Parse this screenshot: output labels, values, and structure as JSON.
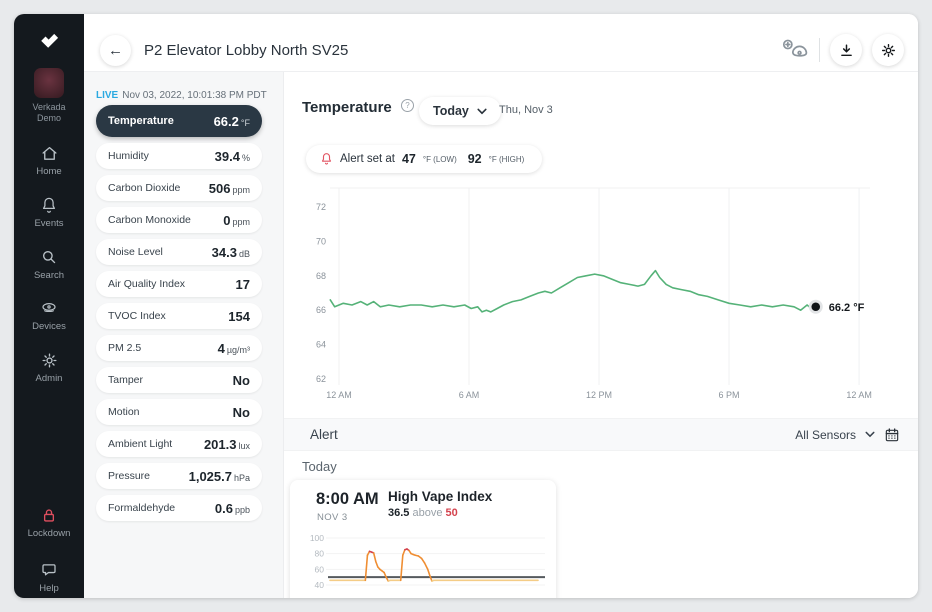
{
  "window_title": "P2 Elevator Lobby North SV25",
  "sidebar": {
    "user": {
      "line1": "Verkada",
      "line2": "Demo"
    },
    "items": [
      {
        "label": "Home",
        "icon": "home"
      },
      {
        "label": "Events",
        "icon": "bell"
      },
      {
        "label": "Search",
        "icon": "search"
      },
      {
        "label": "Devices",
        "icon": "devices"
      },
      {
        "label": "Admin",
        "icon": "gear"
      }
    ],
    "bottom_items": [
      {
        "label": "Lockdown",
        "icon": "lock",
        "red": true
      },
      {
        "label": "Help",
        "icon": "chat",
        "red": false
      }
    ]
  },
  "live_bar": {
    "live": "LIVE",
    "timestamp": "Nov 03, 2022, 10:01:38 PM PDT"
  },
  "sensor_panel": {
    "rows": [
      {
        "label": "Temperature",
        "value": "66.2",
        "unit": "°F",
        "selected": true
      },
      {
        "label": "Humidity",
        "value": "39.4",
        "unit": "%"
      },
      {
        "label": "Carbon Dioxide",
        "value": "506",
        "unit": "ppm"
      },
      {
        "label": "Carbon Monoxide",
        "value": "0",
        "unit": "ppm"
      },
      {
        "label": "Noise Level",
        "value": "34.3",
        "unit": "dB"
      },
      {
        "label": "Air Quality Index",
        "value": "17",
        "unit": ""
      },
      {
        "label": "TVOC Index",
        "value": "154",
        "unit": ""
      },
      {
        "label": "PM 2.5",
        "value": "4",
        "unit": "µg/m³"
      },
      {
        "label": "Tamper",
        "value": "No",
        "unit": ""
      },
      {
        "label": "Motion",
        "value": "No",
        "unit": ""
      },
      {
        "label": "Ambient Light",
        "value": "201.3",
        "unit": "lux"
      },
      {
        "label": "Pressure",
        "value": "1,025.7",
        "unit": "hPa"
      },
      {
        "label": "Formaldehyde",
        "value": "0.6",
        "unit": "ppb"
      }
    ]
  },
  "chart_header": {
    "title": "Temperature",
    "range_selector": "Today",
    "date": "Thu, Nov 3"
  },
  "alert_banner": {
    "text": "Alert set at",
    "low_value": "47",
    "low_unit": "°F (LOW)",
    "high_value": "92",
    "high_unit": "°F (HIGH)"
  },
  "alerts_section": {
    "title": "Alert",
    "filter": "All Sensors",
    "group_label": "Today",
    "card": {
      "time": "8:00 AM",
      "date": "NOV 3",
      "title": "High Vape Index",
      "value": "36.5",
      "relation": "above",
      "threshold": "50"
    }
  },
  "colors": {
    "live_blue": "#2aa9e1",
    "selected_bg": "#2a3844",
    "line_green": "#55b278",
    "alert_red": "#e25563",
    "vape_orange": "#ef8e33",
    "vape_red": "#d4434e",
    "vape_pale": "#f4cc86",
    "grid": "#f0f1f2",
    "tick_text": "#8b939b"
  },
  "chart_data": [
    {
      "type": "line",
      "title": "Temperature (Today, Thu Nov 3)",
      "ylabel": "°F",
      "xlim_hours": [
        -0.45,
        24.55
      ],
      "ylim": [
        61.6,
        73.1
      ],
      "y_ticks": [
        62,
        64,
        66,
        68,
        70,
        72
      ],
      "x_ticks": [
        {
          "h": 0,
          "label": "12 AM"
        },
        {
          "h": 6,
          "label": "6 AM"
        },
        {
          "h": 12,
          "label": "12 PM"
        },
        {
          "h": 18,
          "label": "6 PM"
        },
        {
          "h": 24,
          "label": "12 AM"
        }
      ],
      "grid": "vertical",
      "series": [
        {
          "name": "Temperature",
          "points": [
            [
              -0.4,
              66.6
            ],
            [
              -0.2,
              66.2
            ],
            [
              0.2,
              66.4
            ],
            [
              0.6,
              66.3
            ],
            [
              1.0,
              66.5
            ],
            [
              1.3,
              66.3
            ],
            [
              1.6,
              66.5
            ],
            [
              1.9,
              66.2
            ],
            [
              2.3,
              66.3
            ],
            [
              2.8,
              66.2
            ],
            [
              3.3,
              66.3
            ],
            [
              3.8,
              66.3
            ],
            [
              4.3,
              66.2
            ],
            [
              4.8,
              66.3
            ],
            [
              5.3,
              66.2
            ],
            [
              5.8,
              66.3
            ],
            [
              6.1,
              66.1
            ],
            [
              6.4,
              66.2
            ],
            [
              6.6,
              65.9
            ],
            [
              6.8,
              66.0
            ],
            [
              7.0,
              65.9
            ],
            [
              7.3,
              66.1
            ],
            [
              7.6,
              66.3
            ],
            [
              8.0,
              66.5
            ],
            [
              8.4,
              66.6
            ],
            [
              8.8,
              66.8
            ],
            [
              9.2,
              67.0
            ],
            [
              9.5,
              67.1
            ],
            [
              9.8,
              67.0
            ],
            [
              10.2,
              67.3
            ],
            [
              10.6,
              67.6
            ],
            [
              11.0,
              67.9
            ],
            [
              11.4,
              68.0
            ],
            [
              11.8,
              68.1
            ],
            [
              12.2,
              68.0
            ],
            [
              12.6,
              67.8
            ],
            [
              13.0,
              67.6
            ],
            [
              13.4,
              67.5
            ],
            [
              13.8,
              67.4
            ],
            [
              14.1,
              67.5
            ],
            [
              14.4,
              68.0
            ],
            [
              14.6,
              68.3
            ],
            [
              14.8,
              67.9
            ],
            [
              15.1,
              67.5
            ],
            [
              15.4,
              67.3
            ],
            [
              15.8,
              67.2
            ],
            [
              16.2,
              67.1
            ],
            [
              16.6,
              66.9
            ],
            [
              17.0,
              66.8
            ],
            [
              17.5,
              66.6
            ],
            [
              18.0,
              66.4
            ],
            [
              18.5,
              66.3
            ],
            [
              19.0,
              66.2
            ],
            [
              19.5,
              66.3
            ],
            [
              20.0,
              66.2
            ],
            [
              20.5,
              66.3
            ],
            [
              21.0,
              66.2
            ],
            [
              21.3,
              66.0
            ],
            [
              21.6,
              66.3
            ],
            [
              21.8,
              66.1
            ],
            [
              22.0,
              66.2
            ]
          ]
        }
      ],
      "endpoint": {
        "h": 22.0,
        "value": 66.2,
        "label": "66.2 °F"
      }
    },
    {
      "type": "line",
      "title": "High Vape Index alert mini chart",
      "y_ticks": [
        100,
        80,
        60,
        40
      ],
      "ylim": [
        37,
        104
      ],
      "threshold": 50,
      "series": [
        {
          "name": "Vape Index",
          "points": [
            [
              0,
              46
            ],
            [
              17,
              46
            ],
            [
              18,
              78
            ],
            [
              19,
              83
            ],
            [
              20,
              82
            ],
            [
              21,
              81
            ],
            [
              22,
              70
            ],
            [
              23,
              63
            ],
            [
              24,
              60
            ],
            [
              25,
              58
            ],
            [
              26,
              56
            ],
            [
              27,
              50
            ],
            [
              28,
              45
            ],
            [
              29,
              46
            ],
            [
              34,
              46
            ],
            [
              35,
              78
            ],
            [
              36,
              85
            ],
            [
              37,
              86
            ],
            [
              38,
              84
            ],
            [
              39,
              80
            ],
            [
              40,
              79
            ],
            [
              41,
              78
            ],
            [
              42.5,
              77
            ],
            [
              44,
              74
            ],
            [
              45.5,
              68
            ],
            [
              47,
              60
            ],
            [
              48,
              52
            ],
            [
              49,
              45
            ],
            [
              50,
              46
            ],
            [
              100,
              46
            ]
          ]
        }
      ]
    }
  ]
}
